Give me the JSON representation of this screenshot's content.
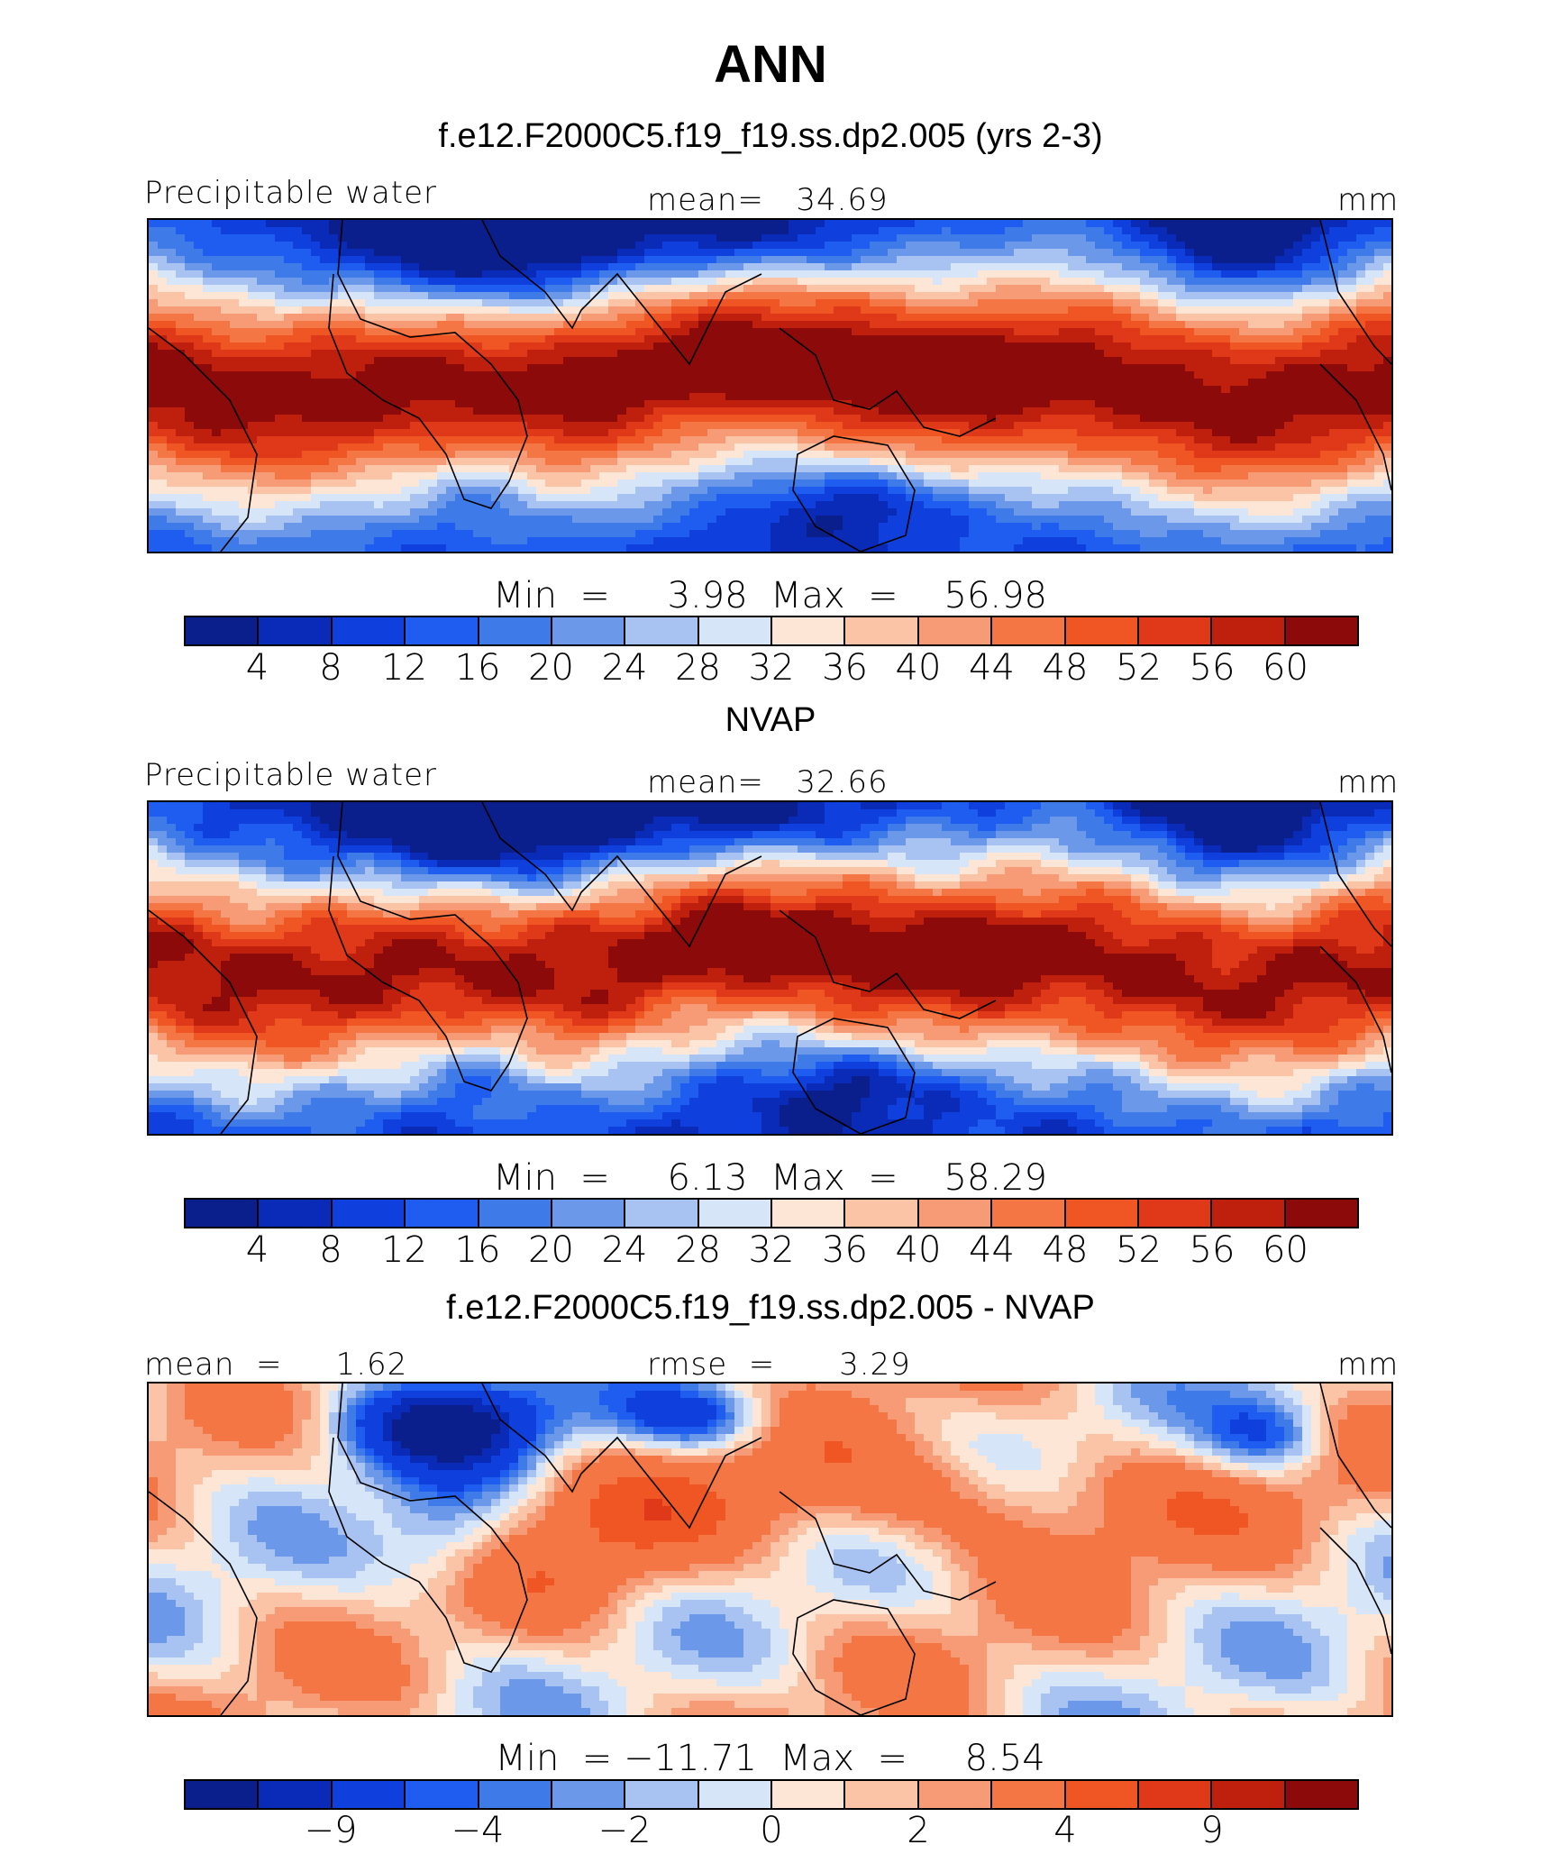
{
  "title": "ANN",
  "colors": [
    "#0a1e8c",
    "#0a2bb8",
    "#0f3fdc",
    "#1f5cf0",
    "#3f7be8",
    "#6c98ea",
    "#a8c3f2",
    "#d6e6f8",
    "#fde6d6",
    "#fbc4a6",
    "#f79b76",
    "#f47644",
    "#ef5624",
    "#e0391a",
    "#bf200e",
    "#8c0a0a"
  ],
  "panels": [
    {
      "subtitle": "f.e12.F2000C5.f19_f19.ss.dp2.005 (yrs 2-3)",
      "left_label": "Precipitable water",
      "center_label": "mean=   34.69",
      "right_label": "mm",
      "minmax": "Min  =     3.98  Max  =    56.98",
      "ticks": [
        "4",
        "8",
        "12",
        "16",
        "20",
        "24",
        "28",
        "32",
        "36",
        "40",
        "44",
        "48",
        "52",
        "56",
        "60"
      ],
      "field": "model"
    },
    {
      "subtitle": "NVAP",
      "left_label": "Precipitable water",
      "center_label": "mean=   32.66",
      "right_label": "mm",
      "minmax": "Min  =     6.13  Max  =    58.29",
      "ticks": [
        "4",
        "8",
        "12",
        "16",
        "20",
        "24",
        "28",
        "32",
        "36",
        "40",
        "44",
        "48",
        "52",
        "56",
        "60"
      ],
      "field": "obs"
    },
    {
      "subtitle": "f.e12.F2000C5.f19_f19.ss.dp2.005 - NVAP",
      "left_label": "mean  =     1.62",
      "center_label": "rmse  =      3.29",
      "right_label": "mm",
      "minmax": "Min  = −11.71  Max  =     8.54",
      "ticks": [
        "",
        "−9",
        "",
        "−4",
        "",
        "−2",
        "",
        "0",
        "",
        "2",
        "",
        "4",
        "",
        "9",
        ""
      ],
      "field": "diff"
    }
  ]
}
